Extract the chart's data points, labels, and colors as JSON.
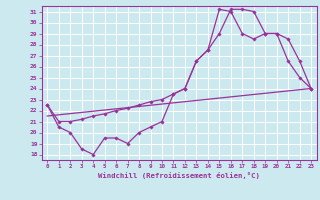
{
  "xlabel": "Windchill (Refroidissement éolien,°C)",
  "bg_color": "#cce9f0",
  "line_color": "#993399",
  "grid_color": "#ffffff",
  "xlim": [
    -0.5,
    23.5
  ],
  "ylim": [
    17.5,
    31.5
  ],
  "yticks": [
    18,
    19,
    20,
    21,
    22,
    23,
    24,
    25,
    26,
    27,
    28,
    29,
    30,
    31
  ],
  "xticks": [
    0,
    1,
    2,
    3,
    4,
    5,
    6,
    7,
    8,
    9,
    10,
    11,
    12,
    13,
    14,
    15,
    16,
    17,
    18,
    19,
    20,
    21,
    22,
    23
  ],
  "series1_x": [
    0,
    1,
    2,
    3,
    4,
    5,
    6,
    7,
    8,
    9,
    10,
    11,
    12,
    13,
    14,
    15,
    16,
    17,
    18,
    19,
    20,
    21,
    22,
    23
  ],
  "series1_y": [
    22.5,
    20.5,
    20.0,
    18.5,
    18.0,
    19.5,
    19.5,
    19.0,
    20.0,
    20.5,
    21.0,
    23.5,
    24.0,
    26.5,
    27.5,
    29.0,
    31.2,
    31.2,
    31.0,
    29.0,
    29.0,
    28.5,
    26.5,
    24.0
  ],
  "series2_x": [
    0,
    1,
    2,
    3,
    4,
    5,
    6,
    7,
    8,
    9,
    10,
    11,
    12,
    13,
    14,
    15,
    16,
    17,
    18,
    19,
    20,
    21,
    22,
    23
  ],
  "series2_y": [
    22.5,
    21.0,
    21.0,
    21.2,
    21.5,
    21.7,
    22.0,
    22.2,
    22.5,
    22.8,
    23.0,
    23.5,
    24.0,
    26.5,
    27.5,
    31.2,
    31.0,
    29.0,
    28.5,
    29.0,
    29.0,
    26.5,
    25.0,
    24.0
  ],
  "series3_x": [
    0,
    23
  ],
  "series3_y": [
    21.5,
    24.0
  ]
}
